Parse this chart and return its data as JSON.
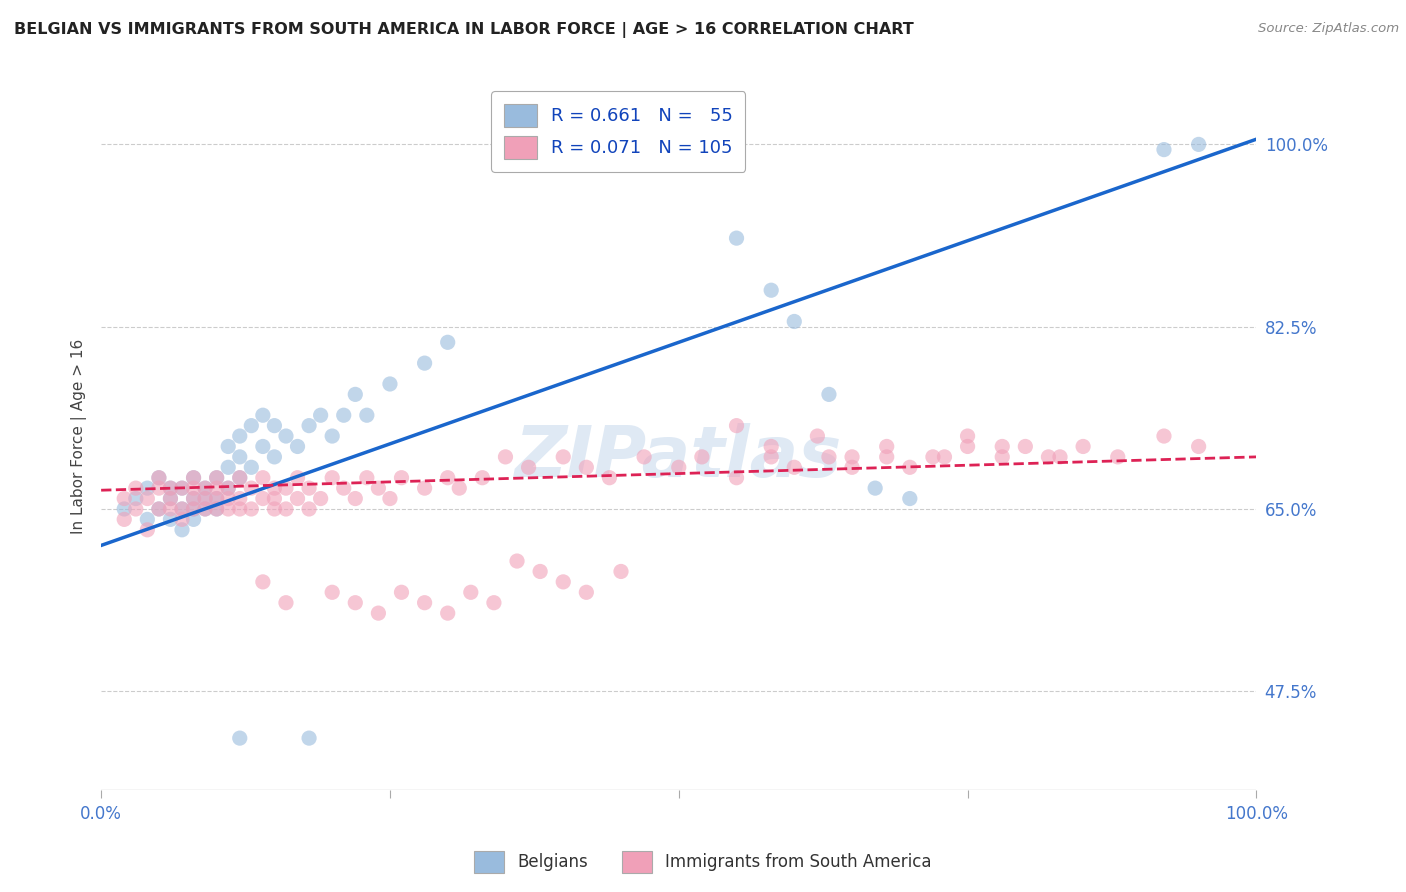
{
  "title": "BELGIAN VS IMMIGRANTS FROM SOUTH AMERICA IN LABOR FORCE | AGE > 16 CORRELATION CHART",
  "source": "Source: ZipAtlas.com",
  "ylabel": "In Labor Force | Age > 16",
  "ytick_labels": [
    "47.5%",
    "65.0%",
    "82.5%",
    "100.0%"
  ],
  "ytick_values": [
    0.475,
    0.65,
    0.825,
    1.0
  ],
  "xlim": [
    0.0,
    1.0
  ],
  "ylim": [
    0.38,
    1.06
  ],
  "legend_entries": [
    {
      "label": "R = 0.661   N =   55",
      "color": "#aac4e2"
    },
    {
      "label": "R = 0.071   N = 105",
      "color": "#f4a8b8"
    }
  ],
  "blue_color": "#99bbdd",
  "pink_color": "#f0a0b8",
  "blue_line_color": "#1a66cc",
  "pink_line_color": "#dd2255",
  "watermark": "ZIPatlas",
  "blue_line": {
    "x0": 0.0,
    "y0": 0.615,
    "x1": 1.0,
    "y1": 1.005
  },
  "pink_line": {
    "x0": 0.0,
    "y0": 0.668,
    "x1": 1.0,
    "y1": 0.7
  },
  "blue_scatter_x": [
    0.02,
    0.03,
    0.04,
    0.04,
    0.05,
    0.05,
    0.06,
    0.06,
    0.06,
    0.07,
    0.07,
    0.07,
    0.08,
    0.08,
    0.08,
    0.08,
    0.09,
    0.09,
    0.09,
    0.1,
    0.1,
    0.1,
    0.11,
    0.11,
    0.11,
    0.12,
    0.12,
    0.12,
    0.13,
    0.13,
    0.14,
    0.14,
    0.15,
    0.15,
    0.16,
    0.17,
    0.18,
    0.19,
    0.2,
    0.21,
    0.22,
    0.23,
    0.25,
    0.28,
    0.3,
    0.55,
    0.58,
    0.12,
    0.18,
    0.6,
    0.63,
    0.67,
    0.7,
    0.92,
    0.95
  ],
  "blue_scatter_y": [
    0.65,
    0.66,
    0.64,
    0.67,
    0.65,
    0.68,
    0.66,
    0.64,
    0.67,
    0.65,
    0.67,
    0.63,
    0.66,
    0.65,
    0.68,
    0.64,
    0.67,
    0.65,
    0.66,
    0.65,
    0.68,
    0.66,
    0.67,
    0.69,
    0.71,
    0.68,
    0.7,
    0.72,
    0.69,
    0.73,
    0.71,
    0.74,
    0.7,
    0.73,
    0.72,
    0.71,
    0.73,
    0.74,
    0.72,
    0.74,
    0.76,
    0.74,
    0.77,
    0.79,
    0.81,
    0.91,
    0.86,
    0.43,
    0.43,
    0.83,
    0.76,
    0.67,
    0.66,
    0.995,
    1.0
  ],
  "pink_scatter_x": [
    0.02,
    0.02,
    0.03,
    0.03,
    0.04,
    0.04,
    0.05,
    0.05,
    0.05,
    0.06,
    0.06,
    0.06,
    0.07,
    0.07,
    0.07,
    0.08,
    0.08,
    0.08,
    0.08,
    0.09,
    0.09,
    0.09,
    0.1,
    0.1,
    0.1,
    0.1,
    0.11,
    0.11,
    0.11,
    0.12,
    0.12,
    0.12,
    0.13,
    0.13,
    0.14,
    0.14,
    0.15,
    0.15,
    0.15,
    0.16,
    0.16,
    0.17,
    0.17,
    0.18,
    0.18,
    0.19,
    0.2,
    0.21,
    0.22,
    0.23,
    0.24,
    0.25,
    0.26,
    0.28,
    0.3,
    0.31,
    0.33,
    0.35,
    0.37,
    0.4,
    0.42,
    0.44,
    0.47,
    0.5,
    0.52,
    0.55,
    0.58,
    0.6,
    0.63,
    0.65,
    0.68,
    0.7,
    0.73,
    0.75,
    0.78,
    0.8,
    0.83,
    0.55,
    0.58,
    0.62,
    0.65,
    0.68,
    0.72,
    0.75,
    0.78,
    0.82,
    0.85,
    0.88,
    0.92,
    0.95,
    0.2,
    0.22,
    0.24,
    0.26,
    0.28,
    0.3,
    0.32,
    0.34,
    0.14,
    0.16,
    0.36,
    0.38,
    0.4,
    0.42,
    0.45
  ],
  "pink_scatter_y": [
    0.66,
    0.64,
    0.67,
    0.65,
    0.66,
    0.63,
    0.67,
    0.65,
    0.68,
    0.66,
    0.65,
    0.67,
    0.65,
    0.67,
    0.64,
    0.67,
    0.65,
    0.66,
    0.68,
    0.66,
    0.65,
    0.67,
    0.65,
    0.67,
    0.66,
    0.68,
    0.66,
    0.65,
    0.67,
    0.65,
    0.66,
    0.68,
    0.67,
    0.65,
    0.66,
    0.68,
    0.67,
    0.65,
    0.66,
    0.67,
    0.65,
    0.66,
    0.68,
    0.67,
    0.65,
    0.66,
    0.68,
    0.67,
    0.66,
    0.68,
    0.67,
    0.66,
    0.68,
    0.67,
    0.68,
    0.67,
    0.68,
    0.7,
    0.69,
    0.7,
    0.69,
    0.68,
    0.7,
    0.69,
    0.7,
    0.68,
    0.7,
    0.69,
    0.7,
    0.69,
    0.7,
    0.69,
    0.7,
    0.71,
    0.7,
    0.71,
    0.7,
    0.73,
    0.71,
    0.72,
    0.7,
    0.71,
    0.7,
    0.72,
    0.71,
    0.7,
    0.71,
    0.7,
    0.72,
    0.71,
    0.57,
    0.56,
    0.55,
    0.57,
    0.56,
    0.55,
    0.57,
    0.56,
    0.58,
    0.56,
    0.6,
    0.59,
    0.58,
    0.57,
    0.59
  ]
}
